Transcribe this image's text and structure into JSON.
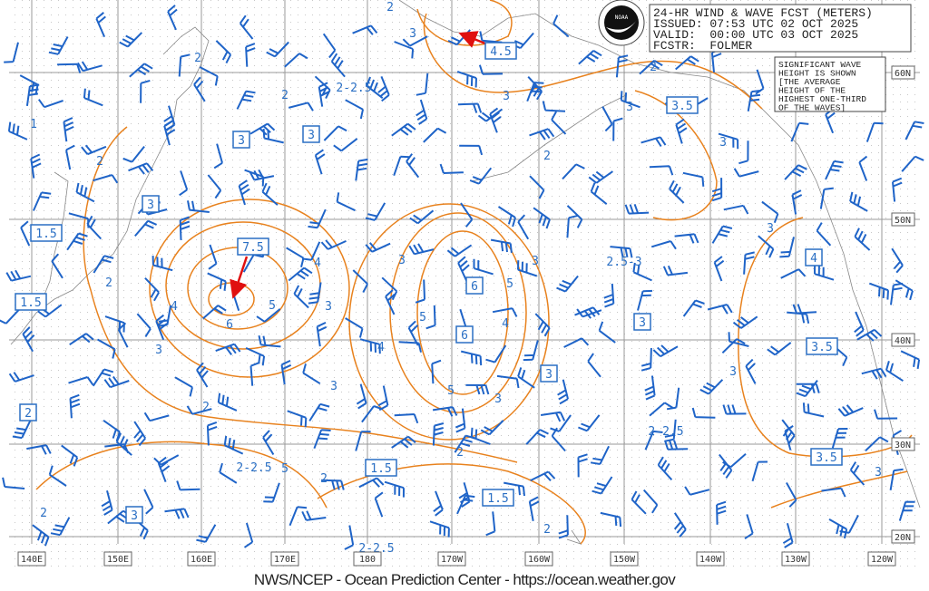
{
  "header": {
    "title": "24-HR WIND & WAVE FCST (METERS)",
    "issued": "ISSUED: 07:53 UTC 02 OCT 2025",
    "valid": "VALID:  00:00 UTC 03 OCT 2025",
    "forecaster": "FCSTR:  FOLMER"
  },
  "logo_text": "NOAA",
  "legend": [
    "SIGNIFICANT WAVE",
    "HEIGHT IS SHOWN",
    "[THE AVERAGE",
    "HEIGHT OF THE",
    "HIGHEST ONE-THIRD",
    "OF THE WAVES]"
  ],
  "longitudes": [
    "140E",
    "150E",
    "160E",
    "170E",
    "180",
    "170W",
    "160W",
    "150W",
    "140W",
    "130W",
    "120W"
  ],
  "latitudes": [
    "60N",
    "50N",
    "40N",
    "30N",
    "20N"
  ],
  "wave_labels": [
    "2",
    "3",
    "2",
    "2",
    "2-2.5",
    "3",
    "3",
    "3",
    "2",
    "1",
    "2",
    "2",
    "3",
    "2.5-3",
    "4",
    "3",
    "3",
    "5",
    "4",
    "5",
    "6",
    "3",
    "5",
    "4",
    "4",
    "3",
    "3",
    "3",
    "5",
    "3",
    "2",
    "2-2.5",
    "2",
    "2-2.5",
    "5",
    "2",
    "2",
    "2",
    "3",
    "2-2.5",
    "2"
  ],
  "boxed_labels": [
    "4.5",
    "3.5",
    "3",
    "3",
    "3",
    "1.5",
    "7.5",
    "1.5",
    "6",
    "6",
    "3",
    "4",
    "3.5",
    "3",
    "2",
    "1.5",
    "1.5",
    "3.5",
    "3"
  ],
  "colors": {
    "contour": "#e8821e",
    "wind": "#1f64c8",
    "arrow": "#e01010",
    "grid": "#999999"
  },
  "footer": "NWS/NCEP - Ocean Prediction Center - https://ocean.weather.gov"
}
